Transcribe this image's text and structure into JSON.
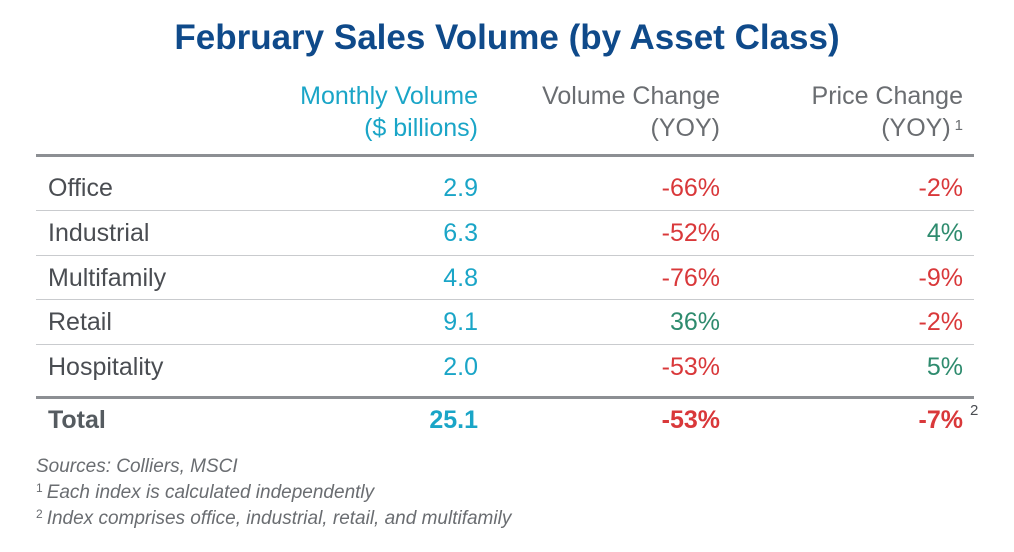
{
  "chart_data": {
    "type": "table",
    "title": "February Sales Volume (by Asset Class)",
    "columns": [
      {
        "line1": "Monthly Volume",
        "line2": "($ billions)",
        "sup": ""
      },
      {
        "line1": "Volume Change",
        "line2": "(YOY)",
        "sup": ""
      },
      {
        "line1": "Price Change",
        "line2": "(YOY)",
        "sup": "1"
      }
    ],
    "rows": [
      {
        "category": "Office",
        "volume": "2.9",
        "volume_change": "-66%",
        "price_change": "-2%"
      },
      {
        "category": "Industrial",
        "volume": "6.3",
        "volume_change": "-52%",
        "price_change": "4%"
      },
      {
        "category": "Multifamily",
        "volume": "4.8",
        "volume_change": "-76%",
        "price_change": "-9%"
      },
      {
        "category": "Retail",
        "volume": "9.1",
        "volume_change": "36%",
        "price_change": "-2%"
      },
      {
        "category": "Hospitality",
        "volume": "2.0",
        "volume_change": "-53%",
        "price_change": "5%"
      }
    ],
    "total": {
      "category": "Total",
      "volume": "25.1",
      "volume_change": "-53%",
      "price_change": "-7%",
      "sup": "2"
    }
  },
  "footnotes": {
    "sources": "Sources: Colliers, MSCI",
    "note1_marker": "1",
    "note1": "Each index is calculated independently",
    "note2_marker": "2",
    "note2": "Index comprises office, industrial, retail, and multifamily"
  },
  "colors": {
    "title": "#0f4a8a",
    "volume": "#1aa5c7",
    "negative": "#d9383a",
    "positive": "#2e8b6e",
    "header_gray": "#6a6d71"
  }
}
